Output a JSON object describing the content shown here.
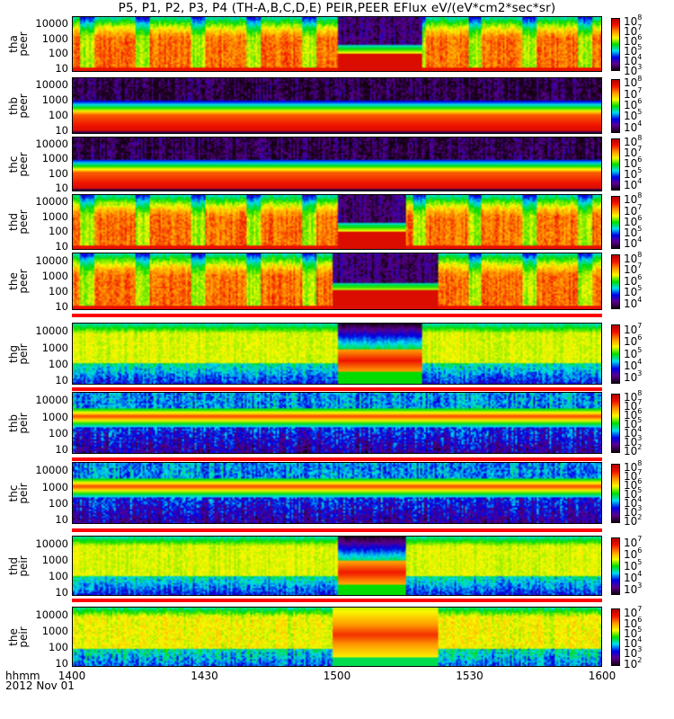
{
  "title": "P5, P1, P2, P3, P4 (TH-A,B,C,D,E) PEIR,PEER EFlux eV/(eV*cm2*sec*sr)",
  "chart_data": {
    "type": "heatmap",
    "title": "P5, P1, P2, P3, P4 (TH-A,B,C,D,E) PEIR,PEER EFlux eV/(eV*cm2*sec*sr)",
    "xlabel": "hhmm",
    "date": "2012 Nov 01",
    "x_ticks": [
      "1400",
      "1430",
      "1500",
      "1530",
      "1600"
    ],
    "x_range_hhmm": [
      "1400",
      "1600"
    ],
    "y_ticks": [
      "10",
      "100",
      "1000",
      "10000"
    ],
    "y_scale": "log",
    "colorscale": "rainbow",
    "panels": [
      {
        "probe": "tha",
        "species": "peer",
        "cbar_exp": [
          "8",
          "7",
          "6",
          "5",
          "4",
          "3"
        ],
        "cbar_range": [
          3,
          8.2
        ],
        "model": "e_dist",
        "disturbed": [
          0.5,
          0.66
        ]
      },
      {
        "probe": "thb",
        "species": "peer",
        "cbar_exp": [
          "8",
          "7",
          "6",
          "5",
          "4"
        ],
        "cbar_range": [
          3.5,
          8.2
        ],
        "model": "e_quiet",
        "disturbed": []
      },
      {
        "probe": "thc",
        "species": "peer",
        "cbar_exp": [
          "8",
          "7",
          "6",
          "5",
          "4"
        ],
        "cbar_range": [
          3.5,
          8.2
        ],
        "model": "e_quiet",
        "disturbed": []
      },
      {
        "probe": "thd",
        "species": "peer",
        "cbar_exp": [
          "8",
          "7",
          "6",
          "5",
          "4"
        ],
        "cbar_range": [
          3.5,
          8.2
        ],
        "model": "e_dist",
        "disturbed": [
          0.5,
          0.63
        ]
      },
      {
        "probe": "the",
        "species": "peer",
        "cbar_exp": [
          "8",
          "7",
          "6",
          "5",
          "4"
        ],
        "cbar_range": [
          3.5,
          8.2
        ],
        "model": "e_dist",
        "disturbed": [
          0.49,
          0.69
        ]
      },
      {
        "probe": "thg",
        "species": "peir",
        "cbar_exp": [
          "7",
          "6",
          "5",
          "4",
          "3"
        ],
        "cbar_range": [
          2.5,
          7.3
        ],
        "model": "i_dist",
        "disturbed": [
          0.5,
          0.66
        ]
      },
      {
        "probe": "thb",
        "species": "peir",
        "cbar_exp": [
          "8",
          "7",
          "6",
          "5",
          "4",
          "3",
          "2"
        ],
        "cbar_range": [
          1.8,
          8.2
        ],
        "model": "i_quiet",
        "disturbed": []
      },
      {
        "probe": "thc",
        "species": "peir",
        "cbar_exp": [
          "8",
          "7",
          "6",
          "5",
          "4",
          "3",
          "2"
        ],
        "cbar_range": [
          1.8,
          8.2
        ],
        "model": "i_quiet",
        "disturbed": []
      },
      {
        "probe": "thd",
        "species": "peir",
        "cbar_exp": [
          "7",
          "6",
          "5",
          "4",
          "3"
        ],
        "cbar_range": [
          2.5,
          7.3
        ],
        "model": "i_dist",
        "disturbed": [
          0.5,
          0.63
        ]
      },
      {
        "probe": "the",
        "species": "peir",
        "cbar_exp": [
          "7",
          "6",
          "5",
          "4",
          "3",
          "2"
        ],
        "cbar_range": [
          1.8,
          7.3
        ],
        "model": "i_hot",
        "disturbed": [
          0.49,
          0.69
        ]
      }
    ]
  }
}
